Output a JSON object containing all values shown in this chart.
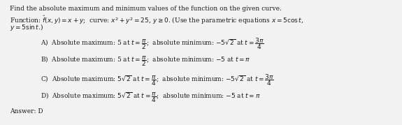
{
  "title_line1": "Find the absolute maximum and minimum values of the function on the given curve.",
  "title_line2": "Function: $\\hat{f}(x, y) = x + y$;  curve: $x^2 + y^2 = 25$, $y \\geq 0$. (Use the parametric equations $x = 5\\cos t$,",
  "title_line3": "$y = 5\\sin t$.)",
  "optionA": "A)  Absolute maximum: 5 at $t = \\dfrac{\\pi}{2}$;  absolute minimum: $-5\\sqrt{2}$ at $t = \\dfrac{3\\pi}{4}$",
  "optionB": "B)  Absolute maximum: 5 at $t = \\dfrac{\\pi}{2}$;  absolute minimum: $-5$ at $t = \\pi$",
  "optionC": "C)  Absolute maximum: $5\\sqrt{2}$ at $t = \\dfrac{\\pi}{4}$;  absolute minimum: $-5\\sqrt{2}$ at $t = \\dfrac{3\\pi}{4}$",
  "optionD": "D)  Absolute maximum: $5\\sqrt{2}$ at $t = \\dfrac{\\pi}{4}$;  absolute minimum: $-5$ at $t = \\pi$",
  "answer": "Answer: D",
  "bg_color": "#f2f2f2",
  "text_color": "#1a1a1a",
  "font_size": 6.5,
  "indent_title": 0.025,
  "indent_options": 0.1
}
